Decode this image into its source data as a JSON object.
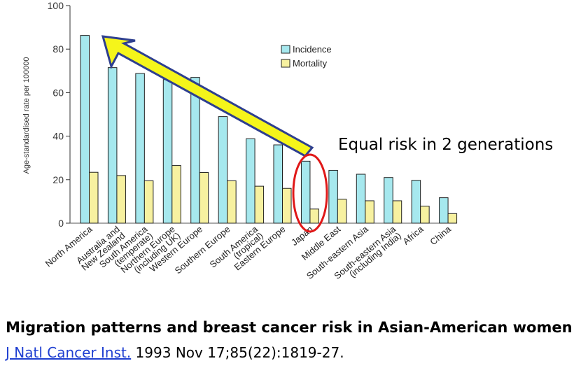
{
  "chart_data": {
    "type": "bar",
    "title": "",
    "xlabel": "",
    "ylabel": "Age-standardised rate per 100000",
    "ylim": [
      0,
      100
    ],
    "yticks": [
      0,
      20,
      40,
      60,
      80,
      100
    ],
    "legend_position": "top-right",
    "categories": [
      "North America",
      "Australia and New Zealand",
      "South America (temperate)",
      "Northern Europe (including UK)",
      "Western Europe",
      "Southern Europe",
      "South America (tropical)",
      "Eastern Europe",
      "Japan",
      "Middle East",
      "South-eastern Asia",
      "South-eastern Asia (including India)",
      "Africa",
      "China"
    ],
    "category_lines": [
      [
        "North America"
      ],
      [
        "Australia and",
        "New Zealand"
      ],
      [
        "South America",
        "(temperate)"
      ],
      [
        "Northern Europe",
        "(including UK)"
      ],
      [
        "Western Europe"
      ],
      [
        "Southern Europe"
      ],
      [
        "South America",
        "(tropical)"
      ],
      [
        "Eastern Europe"
      ],
      [
        "Japan"
      ],
      [
        "Middle East"
      ],
      [
        "South-eastern Asia"
      ],
      [
        "South-eastern Asia",
        "(including India)"
      ],
      [
        "Africa"
      ],
      [
        "China"
      ]
    ],
    "series": [
      {
        "name": "Incidence",
        "color": "#a6e8ee",
        "values": [
          86.3,
          71.5,
          68.8,
          66.0,
          67.0,
          49.0,
          38.8,
          36.0,
          28.5,
          24.3,
          22.5,
          21.0,
          19.7,
          11.7
        ]
      },
      {
        "name": "Mortality",
        "color": "#f7f1a0",
        "values": [
          23.4,
          21.9,
          19.5,
          26.5,
          23.3,
          19.5,
          17.0,
          16.0,
          6.5,
          11.0,
          10.3,
          10.3,
          7.8,
          4.4
        ]
      }
    ],
    "annotations": {
      "equal_risk_text": "Equal risk in 2 generations",
      "arrow_color": "#f5f51a",
      "circle_color": "#e01818"
    }
  },
  "caption": {
    "title": "Migration patterns and breast cancer risk in Asian-American women",
    "journal": "J Natl Cancer Inst.",
    "citation": " 1993 Nov 17;85(22):1819-27."
  }
}
